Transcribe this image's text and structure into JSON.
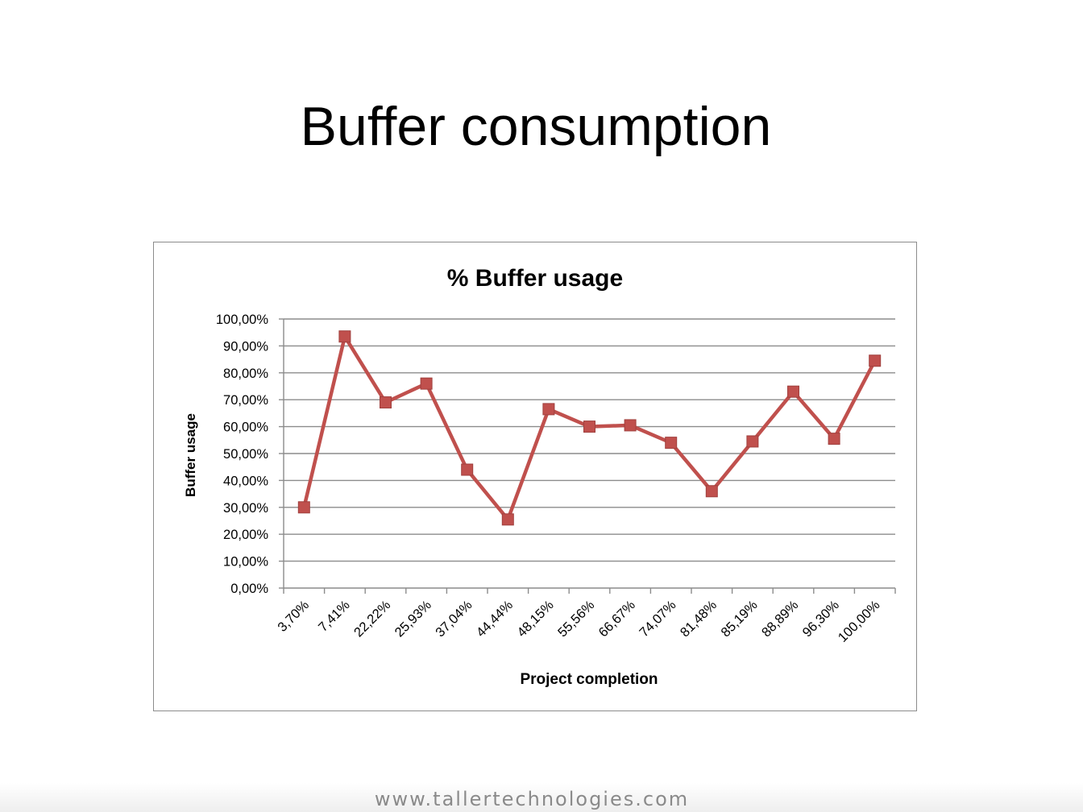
{
  "slide": {
    "title": "Buffer consumption",
    "footer": "www.tallertechnologies.com"
  },
  "chart_data": {
    "type": "line",
    "title": "% Buffer usage",
    "xlabel": "Project completion",
    "ylabel": "Buffer usage",
    "categories": [
      "3,70%",
      "7,41%",
      "22,22%",
      "25,93%",
      "37,04%",
      "44,44%",
      "48,15%",
      "55,56%",
      "66,67%",
      "74,07%",
      "81,48%",
      "85,19%",
      "88,89%",
      "96,30%",
      "100,00%"
    ],
    "series": [
      {
        "values": [
          30,
          93.5,
          69,
          76,
          44,
          25.5,
          66.5,
          60,
          60.5,
          54,
          36,
          54.5,
          73,
          55.5,
          84.5
        ],
        "color": "#c0504d"
      }
    ],
    "ylim": [
      0,
      100
    ],
    "yticks": [
      "0,00%",
      "10,00%",
      "20,00%",
      "30,00%",
      "40,00%",
      "50,00%",
      "60,00%",
      "70,00%",
      "80,00%",
      "90,00%",
      "100,00%"
    ],
    "grid": true,
    "legend": "none"
  }
}
